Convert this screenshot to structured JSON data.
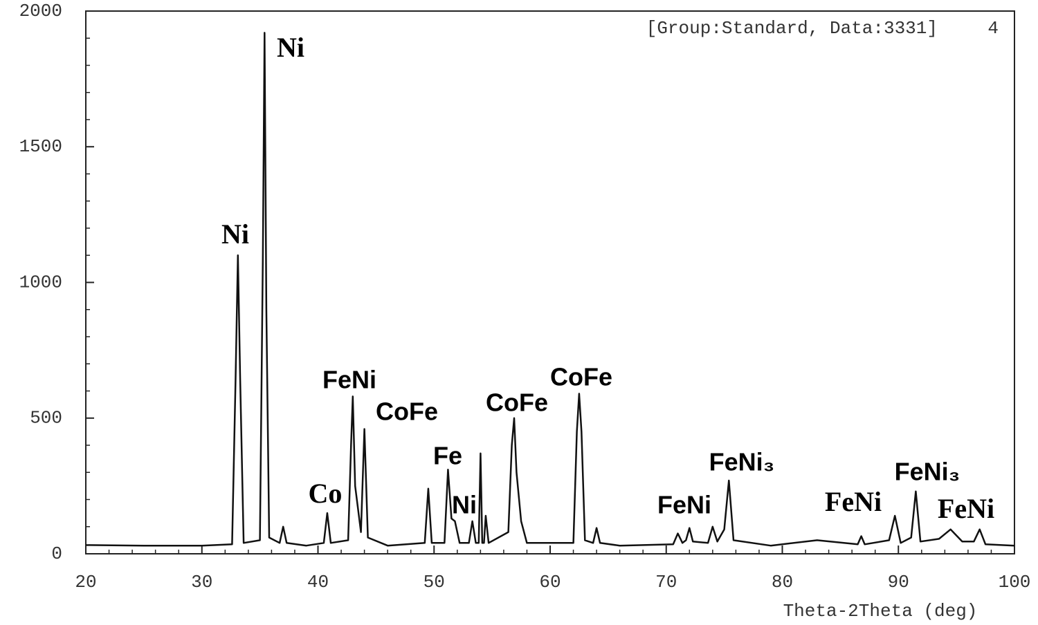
{
  "chart_data": {
    "type": "line",
    "header_note": "[Group:Standard, Data:3331]",
    "header_number": "4",
    "xlabel": "Theta-2Theta (deg)",
    "color": "#111111",
    "xlim": [
      20,
      100
    ],
    "ylim": [
      0,
      2000
    ],
    "xticks": [
      20,
      30,
      40,
      50,
      60,
      70,
      80,
      90,
      100
    ],
    "yticks": [
      0,
      500,
      1000,
      1500,
      2000
    ],
    "xminorticks": [
      22,
      24,
      26,
      28,
      32,
      34,
      36,
      38,
      42,
      44,
      46,
      48,
      52,
      54,
      56,
      58,
      62,
      64,
      66,
      68,
      72,
      74,
      76,
      78,
      82,
      84,
      86,
      88,
      92,
      94,
      96,
      98
    ],
    "yminorticks": [
      100,
      200,
      300,
      400,
      600,
      700,
      800,
      900,
      1100,
      1200,
      1300,
      1400,
      1600,
      1700,
      1800,
      1900
    ],
    "x": [
      20,
      25,
      30,
      32.6,
      32.9,
      33.1,
      33.3,
      33.6,
      35.0,
      35.25,
      35.4,
      35.55,
      35.8,
      36.7,
      37.0,
      37.3,
      39.0,
      40.5,
      40.8,
      41.1,
      42.6,
      42.85,
      43.0,
      43.2,
      43.7,
      44.0,
      44.3,
      46,
      49.2,
      49.5,
      49.8,
      50.9,
      51.2,
      51.5,
      51.8,
      52.2,
      53.0,
      53.3,
      53.6,
      53.85,
      54.0,
      54.15,
      54.3,
      54.45,
      54.7,
      56.4,
      56.7,
      56.9,
      57.1,
      57.5,
      58,
      62.0,
      62.3,
      62.5,
      62.7,
      63.0,
      63.7,
      64.0,
      64.3,
      66,
      70.6,
      71.0,
      71.4,
      71.7,
      72.0,
      72.3,
      73.6,
      74.0,
      74.4,
      75.0,
      75.4,
      75.8,
      79,
      83,
      86.5,
      86.8,
      87.1,
      89.2,
      89.7,
      90.2,
      91.1,
      91.5,
      91.9,
      93.5,
      94.5,
      95.5,
      96.5,
      97.0,
      97.5,
      100
    ],
    "values": [
      32,
      30,
      30,
      35,
      640,
      1100,
      640,
      40,
      50,
      1080,
      1920,
      900,
      60,
      40,
      100,
      40,
      30,
      40,
      150,
      40,
      50,
      400,
      580,
      250,
      80,
      460,
      60,
      30,
      40,
      240,
      40,
      40,
      310,
      130,
      120,
      40,
      40,
      120,
      40,
      40,
      370,
      40,
      40,
      140,
      40,
      80,
      400,
      500,
      300,
      120,
      40,
      40,
      450,
      590,
      450,
      50,
      40,
      95,
      40,
      30,
      35,
      75,
      40,
      50,
      95,
      45,
      40,
      100,
      45,
      90,
      270,
      50,
      30,
      50,
      35,
      65,
      35,
      50,
      140,
      40,
      60,
      230,
      45,
      55,
      90,
      45,
      45,
      90,
      35,
      30
    ],
    "annotations": [
      "Ni",
      "Ni",
      "Co",
      "FeNi",
      "CoFe",
      "Fe",
      "Ni",
      "CoFe",
      "CoFe",
      "FeNi",
      "FeNi₃",
      "FeNi",
      "FeNi₃",
      "FeNi"
    ]
  }
}
